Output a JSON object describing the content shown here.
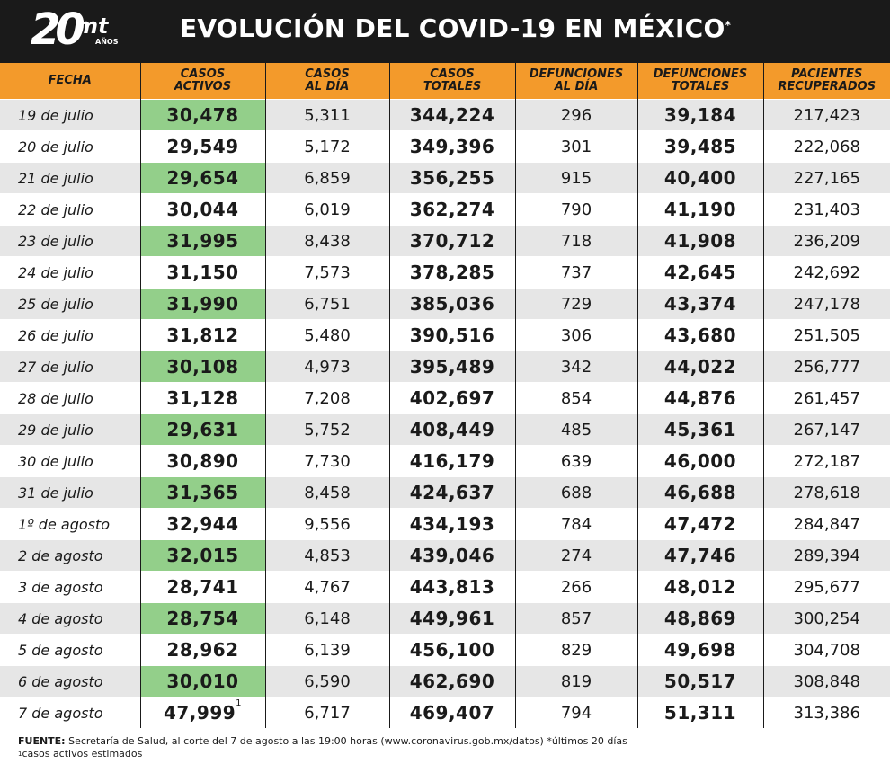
{
  "header": {
    "logo_number": "20",
    "logo_brand": "mt",
    "logo_years": "AÑOS",
    "title": "EVOLUCIÓN DEL COVID-19 EN MÉXICO",
    "title_mark": "*"
  },
  "colors": {
    "header_bg": "#1a1a1a",
    "column_header_bg": "#f39a2b",
    "highlight_active_cases": "#93cf8a",
    "row_stripe": "#e6e6e6"
  },
  "chart_data": {
    "type": "table",
    "columns": [
      {
        "line1": "FECHA",
        "line2": ""
      },
      {
        "line1": "CASOS",
        "line2": "ACTIVOS"
      },
      {
        "line1": "CASOS",
        "line2": "AL DÍA"
      },
      {
        "line1": "CASOS",
        "line2": "TOTALES"
      },
      {
        "line1": "DEFUNCIONES",
        "line2": "AL DÍA"
      },
      {
        "line1": "DEFUNCIONES",
        "line2": "TOTALES"
      },
      {
        "line1": "PACIENTES",
        "line2": "RECUPERADOS"
      }
    ],
    "rows": [
      {
        "fecha": "19 de julio",
        "activos": "30,478",
        "activos_note": "",
        "al_dia": "5,311",
        "totales": "344,224",
        "def_dia": "296",
        "def_tot": "39,184",
        "recup": "217,423"
      },
      {
        "fecha": "20 de julio",
        "activos": "29,549",
        "activos_note": "",
        "al_dia": "5,172",
        "totales": "349,396",
        "def_dia": "301",
        "def_tot": "39,485",
        "recup": "222,068"
      },
      {
        "fecha": "21 de julio",
        "activos": "29,654",
        "activos_note": "",
        "al_dia": "6,859",
        "totales": "356,255",
        "def_dia": "915",
        "def_tot": "40,400",
        "recup": "227,165"
      },
      {
        "fecha": "22 de julio",
        "activos": "30,044",
        "activos_note": "",
        "al_dia": "6,019",
        "totales": "362,274",
        "def_dia": "790",
        "def_tot": "41,190",
        "recup": "231,403"
      },
      {
        "fecha": "23 de julio",
        "activos": "31,995",
        "activos_note": "",
        "al_dia": "8,438",
        "totales": "370,712",
        "def_dia": "718",
        "def_tot": "41,908",
        "recup": "236,209"
      },
      {
        "fecha": "24 de julio",
        "activos": "31,150",
        "activos_note": "",
        "al_dia": "7,573",
        "totales": "378,285",
        "def_dia": "737",
        "def_tot": "42,645",
        "recup": "242,692"
      },
      {
        "fecha": "25 de julio",
        "activos": "31,990",
        "activos_note": "",
        "al_dia": "6,751",
        "totales": "385,036",
        "def_dia": "729",
        "def_tot": "43,374",
        "recup": "247,178"
      },
      {
        "fecha": "26 de julio",
        "activos": "31,812",
        "activos_note": "",
        "al_dia": "5,480",
        "totales": "390,516",
        "def_dia": "306",
        "def_tot": "43,680",
        "recup": "251,505"
      },
      {
        "fecha": "27 de julio",
        "activos": "30,108",
        "activos_note": "",
        "al_dia": "4,973",
        "totales": "395,489",
        "def_dia": "342",
        "def_tot": "44,022",
        "recup": "256,777"
      },
      {
        "fecha": "28 de julio",
        "activos": "31,128",
        "activos_note": "",
        "al_dia": "7,208",
        "totales": "402,697",
        "def_dia": "854",
        "def_tot": "44,876",
        "recup": "261,457"
      },
      {
        "fecha": "29 de julio",
        "activos": "29,631",
        "activos_note": "",
        "al_dia": "5,752",
        "totales": "408,449",
        "def_dia": "485",
        "def_tot": "45,361",
        "recup": "267,147"
      },
      {
        "fecha": "30 de julio",
        "activos": "30,890",
        "activos_note": "",
        "al_dia": "7,730",
        "totales": "416,179",
        "def_dia": "639",
        "def_tot": "46,000",
        "recup": "272,187"
      },
      {
        "fecha": "31 de julio",
        "activos": "31,365",
        "activos_note": "",
        "al_dia": "8,458",
        "totales": "424,637",
        "def_dia": "688",
        "def_tot": "46,688",
        "recup": "278,618"
      },
      {
        "fecha": "1º de agosto",
        "activos": "32,944",
        "activos_note": "",
        "al_dia": "9,556",
        "totales": "434,193",
        "def_dia": "784",
        "def_tot": "47,472",
        "recup": "284,847"
      },
      {
        "fecha": "2 de agosto",
        "activos": "32,015",
        "activos_note": "",
        "al_dia": "4,853",
        "totales": "439,046",
        "def_dia": "274",
        "def_tot": "47,746",
        "recup": "289,394"
      },
      {
        "fecha": "3 de agosto",
        "activos": "28,741",
        "activos_note": "",
        "al_dia": "4,767",
        "totales": "443,813",
        "def_dia": "266",
        "def_tot": "48,012",
        "recup": "295,677"
      },
      {
        "fecha": "4 de agosto",
        "activos": "28,754",
        "activos_note": "",
        "al_dia": "6,148",
        "totales": "449,961",
        "def_dia": "857",
        "def_tot": "48,869",
        "recup": "300,254"
      },
      {
        "fecha": "5 de agosto",
        "activos": "28,962",
        "activos_note": "",
        "al_dia": "6,139",
        "totales": "456,100",
        "def_dia": "829",
        "def_tot": "49,698",
        "recup": "304,708"
      },
      {
        "fecha": "6 de agosto",
        "activos": "30,010",
        "activos_note": "",
        "al_dia": "6,590",
        "totales": "462,690",
        "def_dia": "819",
        "def_tot": "50,517",
        "recup": "308,848"
      },
      {
        "fecha": "7 de agosto",
        "activos": "47,999",
        "activos_note": "1",
        "al_dia": "6,717",
        "totales": "469,407",
        "def_dia": "794",
        "def_tot": "51,311",
        "recup": "313,386"
      }
    ]
  },
  "footer": {
    "source_label": "FUENTE:",
    "source_text": " Secretaría de Salud, al corte del 7 de agosto a las 19:00 horas (www.coronavirus.gob.mx/datos) *últimos 20 días",
    "note_mark": "1",
    "note_text": "casos activos estimados"
  }
}
